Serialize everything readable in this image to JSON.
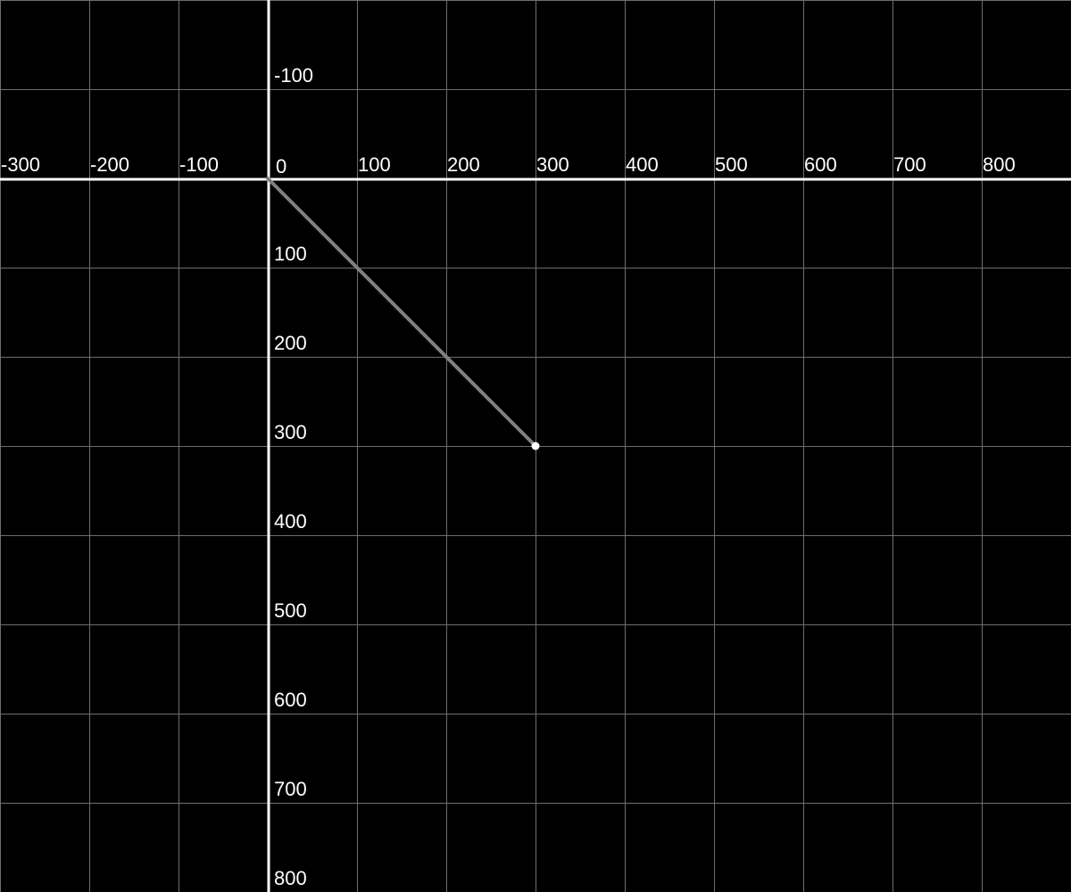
{
  "chart_data": {
    "type": "line",
    "title": "",
    "xlabel": "",
    "ylabel": "",
    "xlim": [
      -300,
      900
    ],
    "ylim": [
      -200,
      800
    ],
    "y_axis_direction": "down",
    "grid": true,
    "x_ticks": [
      -300,
      -200,
      -100,
      0,
      100,
      200,
      300,
      400,
      500,
      600,
      700,
      800
    ],
    "y_ticks": [
      -100,
      100,
      200,
      300,
      400,
      500,
      600,
      700,
      800
    ],
    "origin_label": "0",
    "series": [
      {
        "points": [
          {
            "x": 0,
            "y": 0
          },
          {
            "x": 300,
            "y": 300
          }
        ],
        "color": "#808080",
        "end_marker": true
      }
    ]
  },
  "colors": {
    "background": "#000000",
    "grid": "#6e6e6e",
    "axis": "#ffffff",
    "text": "#ffffff",
    "line": "#808080",
    "marker": "#ffffff"
  }
}
